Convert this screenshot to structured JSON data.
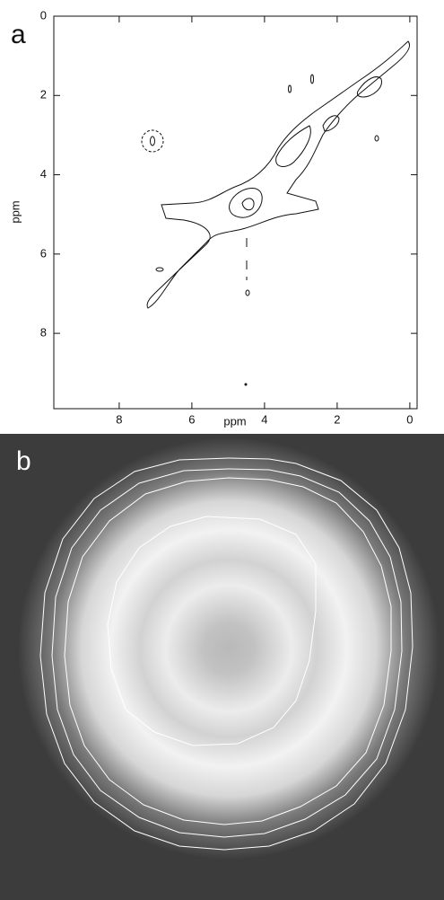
{
  "chart_data": {
    "type": "contour",
    "panel_label": "a",
    "xlabel": "ppm",
    "ylabel": "ppm",
    "xlim": [
      9.8,
      -0.2
    ],
    "ylim": [
      0,
      9.9
    ],
    "xticks": [
      8,
      6,
      4,
      2,
      0
    ],
    "yticks": [
      0,
      2,
      4,
      6,
      8
    ]
  },
  "image_panel": {
    "label": "b"
  }
}
